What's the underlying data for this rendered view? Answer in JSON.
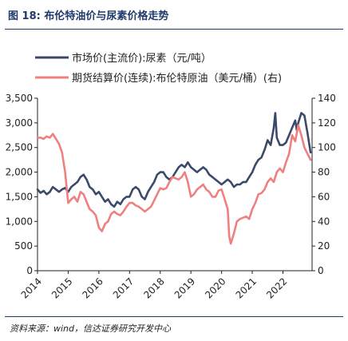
{
  "figure": {
    "title": "图 18:  布伦特油价与尿素价格走势",
    "source": "资料来源：wind，信达证券研究开发中心"
  },
  "chart_data": {
    "type": "line",
    "title": "",
    "legend_position": "top-left",
    "x_ticks": [
      "2014",
      "2015",
      "2016",
      "2017",
      "2018",
      "2019",
      "2020",
      "2021",
      "2022"
    ],
    "xlim": [
      2014.0,
      2022.95
    ],
    "y_left": {
      "ylim": [
        0,
        3500
      ],
      "ticks": [
        "0",
        "500",
        "1,000",
        "1,500",
        "2,000",
        "2,500",
        "3,000",
        "3,500"
      ]
    },
    "y_right": {
      "ylim": [
        0,
        140
      ],
      "ticks": [
        "0",
        "20",
        "40",
        "60",
        "80",
        "100",
        "120",
        "140"
      ]
    },
    "grid": false,
    "series": [
      {
        "name": "市场价(主流价):尿素（元/吨）",
        "axis": "left",
        "color": "#3b4a6b",
        "x": [
          2014.0,
          2014.1,
          2014.2,
          2014.3,
          2014.4,
          2014.5,
          2014.6,
          2014.7,
          2014.8,
          2014.9,
          2015.0,
          2015.1,
          2015.2,
          2015.3,
          2015.4,
          2015.5,
          2015.6,
          2015.7,
          2015.8,
          2015.9,
          2016.0,
          2016.1,
          2016.2,
          2016.3,
          2016.4,
          2016.5,
          2016.6,
          2016.7,
          2016.8,
          2016.9,
          2017.0,
          2017.1,
          2017.2,
          2017.3,
          2017.4,
          2017.5,
          2017.6,
          2017.7,
          2017.8,
          2017.9,
          2018.0,
          2018.1,
          2018.2,
          2018.3,
          2018.4,
          2018.5,
          2018.6,
          2018.7,
          2018.8,
          2018.9,
          2019.0,
          2019.1,
          2019.2,
          2019.3,
          2019.4,
          2019.5,
          2019.6,
          2019.7,
          2019.8,
          2019.9,
          2020.0,
          2020.1,
          2020.2,
          2020.3,
          2020.4,
          2020.5,
          2020.6,
          2020.7,
          2020.8,
          2020.9,
          2021.0,
          2021.1,
          2021.2,
          2021.3,
          2021.4,
          2021.5,
          2021.6,
          2021.7,
          2021.75,
          2021.8,
          2021.9,
          2022.0,
          2022.1,
          2022.2,
          2022.3,
          2022.4,
          2022.45,
          2022.5,
          2022.6,
          2022.7,
          2022.8,
          2022.9
        ],
        "y": [
          1650,
          1580,
          1620,
          1550,
          1600,
          1700,
          1650,
          1600,
          1650,
          1680,
          1600,
          1700,
          1750,
          1800,
          1900,
          1950,
          1850,
          1700,
          1650,
          1550,
          1600,
          1500,
          1400,
          1450,
          1350,
          1300,
          1400,
          1350,
          1450,
          1500,
          1500,
          1650,
          1700,
          1650,
          1500,
          1450,
          1600,
          1700,
          1800,
          1950,
          2000,
          2000,
          1900,
          1850,
          1900,
          2000,
          2100,
          2150,
          2100,
          2200,
          2100,
          2050,
          2000,
          2050,
          2100,
          2050,
          1950,
          1900,
          1850,
          1800,
          1750,
          1800,
          1850,
          1800,
          1700,
          1750,
          1750,
          1800,
          1800,
          1900,
          2000,
          2150,
          2250,
          2300,
          2450,
          2650,
          2550,
          2900,
          3200,
          2700,
          2550,
          2550,
          2600,
          2750,
          2900,
          3050,
          2850,
          3000,
          3200,
          3150,
          2800,
          2400
        ]
      },
      {
        "name": "期货结算价(连续):布伦特原油（美元/桶）(右)",
        "axis": "right",
        "color": "#f08080",
        "x": [
          2014.0,
          2014.1,
          2014.2,
          2014.3,
          2014.4,
          2014.5,
          2014.6,
          2014.7,
          2014.8,
          2014.9,
          2015.0,
          2015.1,
          2015.2,
          2015.3,
          2015.4,
          2015.5,
          2015.6,
          2015.7,
          2015.8,
          2015.9,
          2016.0,
          2016.1,
          2016.2,
          2016.3,
          2016.4,
          2016.5,
          2016.6,
          2016.7,
          2016.8,
          2016.9,
          2017.0,
          2017.1,
          2017.2,
          2017.3,
          2017.4,
          2017.5,
          2017.6,
          2017.7,
          2017.8,
          2017.9,
          2018.0,
          2018.1,
          2018.2,
          2018.3,
          2018.4,
          2018.5,
          2018.6,
          2018.7,
          2018.8,
          2018.9,
          2019.0,
          2019.1,
          2019.2,
          2019.3,
          2019.4,
          2019.5,
          2019.6,
          2019.7,
          2019.8,
          2019.9,
          2020.0,
          2020.1,
          2020.2,
          2020.25,
          2020.3,
          2020.4,
          2020.5,
          2020.6,
          2020.7,
          2020.8,
          2020.9,
          2021.0,
          2021.1,
          2021.2,
          2021.3,
          2021.4,
          2021.5,
          2021.6,
          2021.7,
          2021.8,
          2021.9,
          2022.0,
          2022.1,
          2022.2,
          2022.3,
          2022.4,
          2022.5,
          2022.6,
          2022.7,
          2022.8,
          2022.9
        ],
        "y": [
          108,
          108,
          107,
          109,
          108,
          111,
          107,
          103,
          96,
          80,
          55,
          58,
          60,
          56,
          64,
          62,
          56,
          50,
          48,
          45,
          35,
          32,
          38,
          40,
          46,
          48,
          46,
          45,
          48,
          52,
          55,
          55,
          53,
          52,
          50,
          48,
          50,
          52,
          57,
          62,
          67,
          66,
          67,
          72,
          76,
          75,
          74,
          76,
          80,
          72,
          60,
          62,
          66,
          68,
          70,
          66,
          64,
          60,
          60,
          65,
          66,
          58,
          50,
          28,
          22,
          30,
          40,
          42,
          43,
          44,
          42,
          50,
          55,
          62,
          63,
          66,
          72,
          75,
          72,
          80,
          83,
          80,
          88,
          95,
          110,
          105,
          118,
          110,
          100,
          95,
          90
        ]
      }
    ]
  }
}
